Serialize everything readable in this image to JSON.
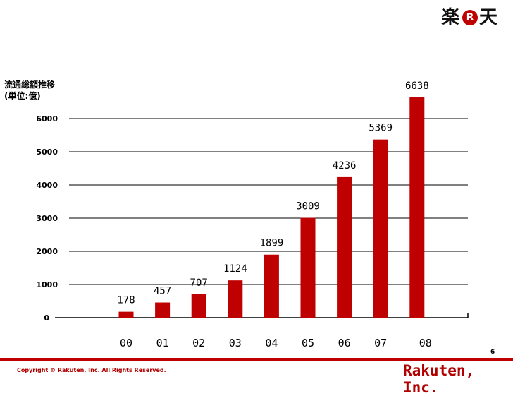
{
  "header": {
    "logo_kanji_1": "楽",
    "logo_r": "R",
    "logo_kanji_2": "天"
  },
  "chart_title": "流通総額推移",
  "chart_unit": "(単位:億)",
  "chart_data": {
    "type": "bar",
    "title": "流通総額推移",
    "ylabel": "(単位:億)",
    "xlabel": "",
    "categories": [
      "00",
      "01",
      "02",
      "03",
      "04",
      "05",
      "06",
      "07",
      "08"
    ],
    "values": [
      178,
      457,
      707,
      1124,
      1899,
      3009,
      4236,
      5369,
      6638
    ],
    "data_labels": [
      "178",
      "457",
      "707",
      "1124",
      "1899",
      "3009",
      "4236",
      "5369",
      "6638"
    ],
    "yticks": [
      0,
      1000,
      2000,
      3000,
      4000,
      5000,
      6000
    ],
    "ylim": [
      0,
      6000
    ],
    "grid": true,
    "legend": "none",
    "bar_color": "#bf0000"
  },
  "page_number": "6",
  "footer": {
    "copyright": "Copyright © Rakuten, Inc. All Rights Reserved.",
    "brand": "Rakuten, Inc."
  },
  "colors": {
    "accent": "#bf0000",
    "gridline": "#000000"
  }
}
